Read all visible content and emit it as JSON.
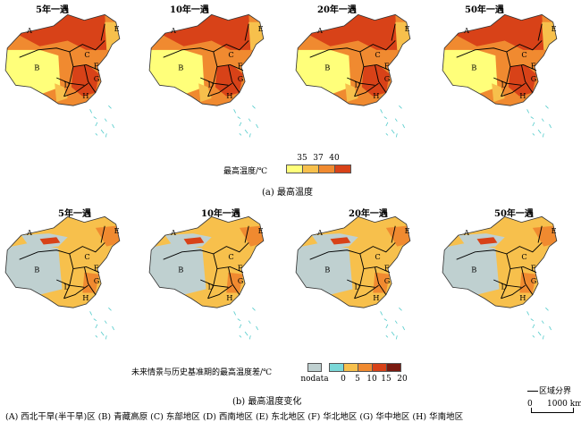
{
  "top_row": {
    "titles": [
      "5年一遇",
      "10年一遇",
      "20年一遇",
      "50年一遇"
    ],
    "legend_title": "最高温度/℃",
    "legend_ticks": [
      "35",
      "37",
      "40"
    ],
    "legend_colors": [
      "#ffff7a",
      "#f7c04c",
      "#f08a30",
      "#d84218"
    ],
    "caption": "(a) 最高温度"
  },
  "bottom_row": {
    "titles": [
      "5年一遇",
      "10年一遇",
      "20年一遇",
      "50年一遇"
    ],
    "legend_title": "未来情景与历史基准期的最高温度差/℃",
    "nodata_label": "nodata",
    "legend_ticks": [
      "0",
      "5",
      "10",
      "15",
      "20"
    ],
    "legend_colors": [
      "#bfd0d0",
      "#7ad8d8",
      "#f7c04c",
      "#f08a30",
      "#d84218",
      "#7a1a10"
    ],
    "caption": "(b) 最高温度变化"
  },
  "region_letters": [
    "A",
    "B",
    "C",
    "D",
    "E",
    "F",
    "G",
    "H"
  ],
  "footer": {
    "regions": "(A) 西北干旱(半干旱)区 (B) 青藏高原 (C) 东部地区 (D) 西南地区 (E) 东北地区 (F) 华北地区 (G) 华中地区 (H) 华南地区",
    "boundary_label": "区域分界",
    "scale_zero": "0",
    "scale_label": "1000 km"
  }
}
